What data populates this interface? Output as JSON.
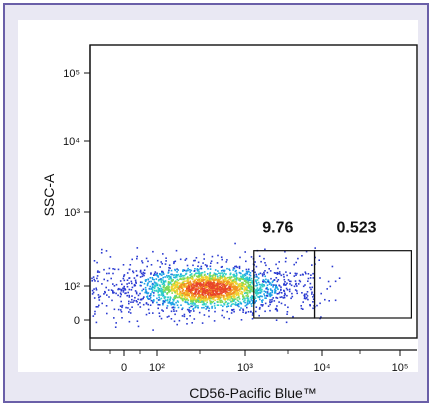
{
  "chart_data": {
    "type": "scatter",
    "plot_style": "pseudocolor density dot plot",
    "xlabel": "CD56-Pacific Blue™",
    "ylabel": "SSC-A",
    "x_scale": "biexponential",
    "y_scale": "biexponential",
    "x_ticks": [
      "0",
      "10²",
      "10³",
      "10⁴",
      "10⁵"
    ],
    "y_ticks": [
      "0",
      "10²",
      "10³",
      "10⁴",
      "10⁵"
    ],
    "density_colors": [
      "#2b3bd1",
      "#1aa0e6",
      "#2fd0c8",
      "#7ed957",
      "#f2d22e",
      "#f29422",
      "#e8452a"
    ],
    "gates": [
      {
        "label": "9.76",
        "x_range": [
          1300,
          8000
        ],
        "y_range": [
          0,
          300
        ]
      },
      {
        "label": "0.523",
        "x_range": [
          8000,
          140000
        ],
        "y_range": [
          0,
          300
        ]
      }
    ]
  }
}
